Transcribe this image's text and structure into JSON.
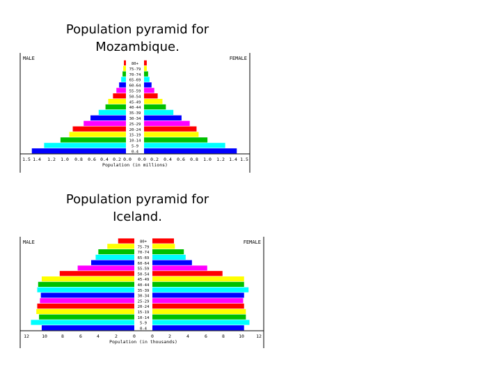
{
  "titles": [
    "Population pyramid for Mozambique.",
    "Population pyramid for Iceland."
  ],
  "colors": [
    "#0000ff",
    "#00ffff",
    "#00c000",
    "#ffff00",
    "#ff0000",
    "#ff00ff",
    "#0000ff",
    "#00ffff",
    "#00c000",
    "#ffff00",
    "#ff0000",
    "#ff00ff",
    "#0000ff",
    "#00ffff",
    "#00c000",
    "#ffff00",
    "#ff0000"
  ],
  "chart_data": [
    {
      "type": "bar",
      "male_label": "MALE",
      "female_label": "FEMALE",
      "xlabel": "Population (in millions)",
      "categories": [
        "0-4",
        "5-9",
        "10-14",
        "15-19",
        "20-24",
        "25-29",
        "30-34",
        "35-39",
        "40-44",
        "45-49",
        "50-54",
        "55-59",
        "60-64",
        "65-69",
        "70-74",
        "75-79",
        "80+"
      ],
      "tick_labels": [
        "1.5",
        "1.4",
        "1.2",
        "1.0",
        "0.8",
        "0.6",
        "0.4",
        "0.2",
        "0.0",
        "0.0",
        "0.2",
        "0.4",
        "0.6",
        "0.8",
        "1.0",
        "1.2",
        "1.4",
        "1.5"
      ],
      "xlim": [
        0,
        1.5
      ],
      "series": [
        {
          "name": "MALE",
          "values": [
            1.38,
            1.2,
            0.96,
            0.83,
            0.78,
            0.62,
            0.52,
            0.4,
            0.3,
            0.26,
            0.19,
            0.14,
            0.1,
            0.07,
            0.05,
            0.04,
            0.03
          ]
        },
        {
          "name": "FEMALE",
          "values": [
            1.36,
            1.19,
            0.93,
            0.8,
            0.77,
            0.67,
            0.55,
            0.43,
            0.32,
            0.27,
            0.2,
            0.15,
            0.11,
            0.08,
            0.06,
            0.04,
            0.04
          ]
        }
      ]
    },
    {
      "type": "bar",
      "male_label": "MALE",
      "female_label": "FEMALE",
      "xlabel": "Population (in thousands)",
      "categories": [
        "0-4",
        "5-9",
        "10-14",
        "15-19",
        "20-24",
        "25-29",
        "30-34",
        "35-39",
        "40-44",
        "45-49",
        "50-54",
        "55-59",
        "60-64",
        "65-69",
        "70-74",
        "75-79",
        "80+"
      ],
      "tick_labels": [
        "12",
        "10",
        "8",
        "6",
        "4",
        "2",
        "0",
        "0",
        "2",
        "4",
        "6",
        "8",
        "10",
        "12"
      ],
      "xlim": [
        0,
        12
      ],
      "series": [
        {
          "name": "MALE",
          "values": [
            10.3,
            11.5,
            10.6,
            10.9,
            10.8,
            10.5,
            10.4,
            10.8,
            10.7,
            10.3,
            8.3,
            6.3,
            4.8,
            4.3,
            4.0,
            3.0,
            1.8
          ]
        },
        {
          "name": "FEMALE",
          "values": [
            10.2,
            10.8,
            10.4,
            10.4,
            10.2,
            10.1,
            10.2,
            10.7,
            10.2,
            10.2,
            7.8,
            6.1,
            4.4,
            3.7,
            3.5,
            2.5,
            2.4
          ]
        }
      ]
    }
  ]
}
